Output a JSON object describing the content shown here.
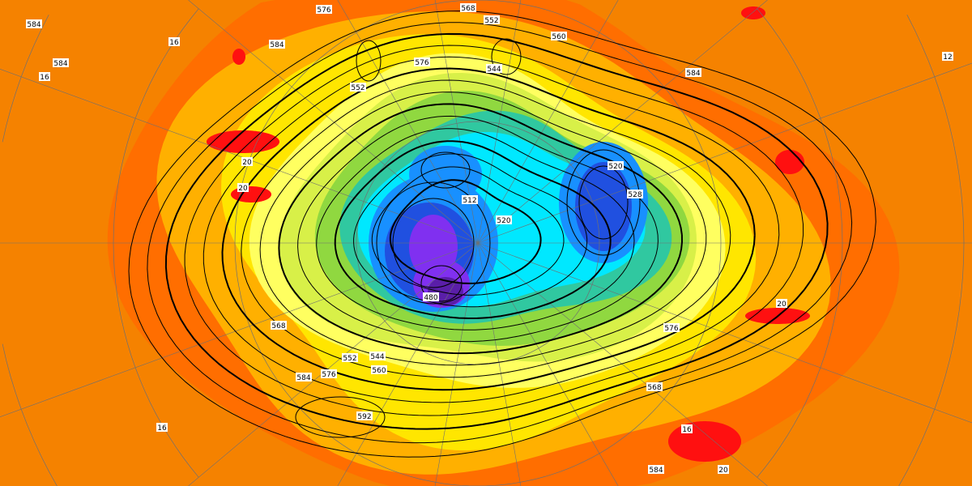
{
  "map": {
    "projection": "polar stereographic, northern hemisphere",
    "colors": {
      "background": "#f58200",
      "bands": [
        "#f58200",
        "#ff6e00",
        "#ffb000",
        "#ffe600",
        "#ffff60",
        "#d8f048",
        "#90d840",
        "#30c8a0",
        "#00e8ff",
        "#1890ff",
        "#2050e0",
        "#8030f0",
        "#5a1ea8",
        "#505058"
      ],
      "hot_spots": "#ff1010",
      "contours": "#000000",
      "graticule": "#707070"
    },
    "contour_levels": [
      480,
      488,
      496,
      504,
      512,
      520,
      528,
      536,
      544,
      552,
      560,
      568,
      576,
      584,
      592
    ],
    "labels": [
      {
        "text": "584"
      },
      {
        "text": "584"
      },
      {
        "text": "576"
      },
      {
        "text": "568"
      },
      {
        "text": "552"
      },
      {
        "text": "560"
      },
      {
        "text": "576"
      },
      {
        "text": "544"
      },
      {
        "text": "552"
      },
      {
        "text": "584"
      },
      {
        "text": "16"
      },
      {
        "text": "16"
      },
      {
        "text": "584"
      },
      {
        "text": "20"
      },
      {
        "text": "20"
      },
      {
        "text": "512"
      },
      {
        "text": "520"
      },
      {
        "text": "528"
      },
      {
        "text": "520"
      },
      {
        "text": "480"
      },
      {
        "text": "568"
      },
      {
        "text": "552"
      },
      {
        "text": "544"
      },
      {
        "text": "560"
      },
      {
        "text": "584"
      },
      {
        "text": "576"
      },
      {
        "text": "592"
      },
      {
        "text": "576"
      },
      {
        "text": "568"
      },
      {
        "text": "584"
      },
      {
        "text": "20"
      },
      {
        "text": "16"
      },
      {
        "text": "16"
      },
      {
        "text": "20"
      },
      {
        "text": "12"
      }
    ]
  }
}
